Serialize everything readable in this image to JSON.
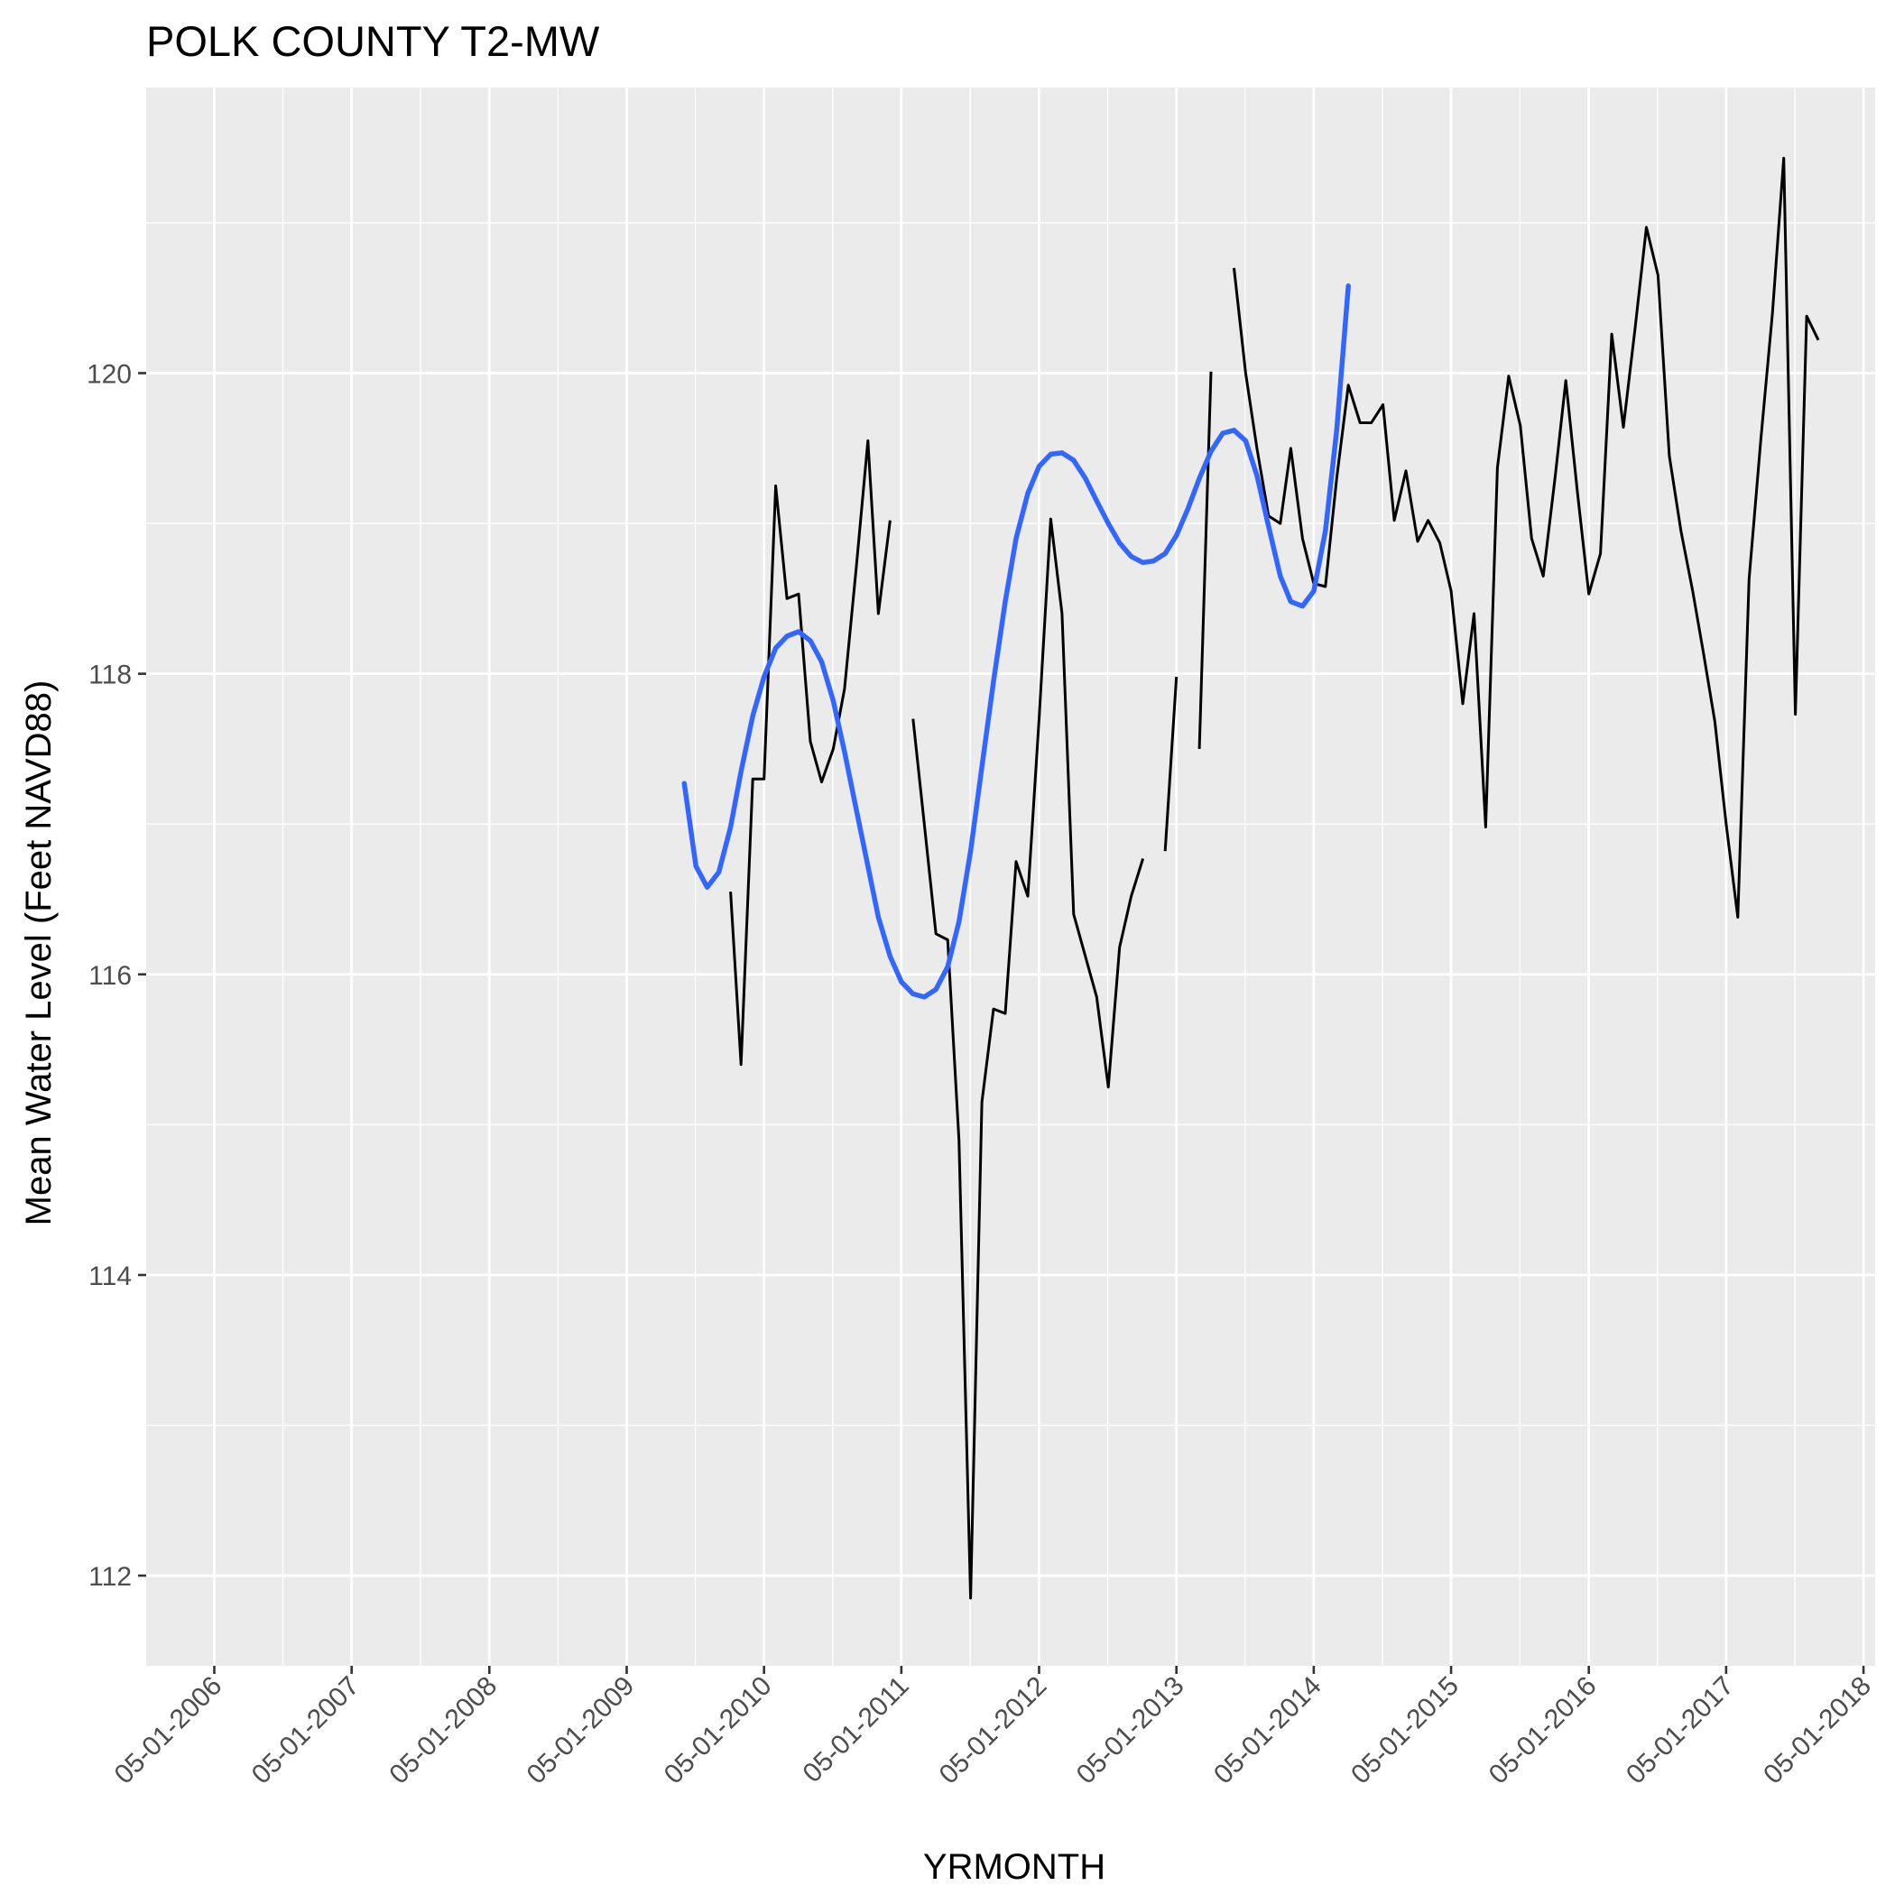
{
  "chart_data": {
    "type": "line",
    "title": "POLK COUNTY T2-MW",
    "xlabel": "YRMONTH",
    "ylabel": "Mean Water Level (Feet NAVD88)",
    "x_tick_labels": [
      "05-01-2006",
      "05-01-2007",
      "05-01-2008",
      "05-01-2009",
      "05-01-2010",
      "05-01-2011",
      "05-01-2012",
      "05-01-2013",
      "05-01-2014",
      "05-01-2015",
      "05-01-2016",
      "05-01-2017",
      "05-01-2018"
    ],
    "y_tick_labels": [
      "112",
      "114",
      "116",
      "118",
      "120"
    ],
    "xlim": [
      "2005-11-01",
      "2018-06-01"
    ],
    "ylim": [
      111.4,
      121.9
    ],
    "grid": true,
    "legend": "none",
    "colors": {
      "panel_background": "#ebebeb",
      "grid": "#ffffff",
      "observed_line": "#000000",
      "smooth_line": "#3366ff"
    },
    "series": [
      {
        "role": "observed",
        "segments": [
          [
            [
              "2010-02-01",
              116.55
            ],
            [
              "2010-03-01",
              115.4
            ],
            [
              "2010-04-01",
              117.3
            ],
            [
              "2010-05-01",
              117.3
            ],
            [
              "2010-06-01",
              119.25
            ],
            [
              "2010-07-01",
              118.5
            ],
            [
              "2010-08-01",
              118.53
            ],
            [
              "2010-09-01",
              117.55
            ],
            [
              "2010-10-01",
              117.28
            ],
            [
              "2010-11-01",
              117.5
            ],
            [
              "2010-12-01",
              117.9
            ],
            [
              "2011-01-01",
              118.7
            ],
            [
              "2011-02-01",
              119.55
            ],
            [
              "2011-03-01",
              118.4
            ],
            [
              "2011-04-01",
              119.02
            ]
          ],
          [
            [
              "2011-06-01",
              117.7
            ],
            [
              "2011-07-01",
              117.0
            ],
            [
              "2011-08-01",
              116.27
            ],
            [
              "2011-09-01",
              116.23
            ],
            [
              "2011-10-01",
              114.9
            ],
            [
              "2011-11-01",
              111.85
            ],
            [
              "2011-12-01",
              115.15
            ],
            [
              "2012-01-01",
              115.77
            ],
            [
              "2012-02-01",
              115.74
            ],
            [
              "2012-03-01",
              116.75
            ],
            [
              "2012-04-01",
              116.52
            ],
            [
              "2012-05-01",
              117.7
            ],
            [
              "2012-06-01",
              119.03
            ],
            [
              "2012-07-01",
              118.4
            ],
            [
              "2012-08-01",
              116.4
            ],
            [
              "2012-09-01",
              116.12
            ],
            [
              "2012-10-01",
              115.85
            ],
            [
              "2012-11-01",
              115.25
            ],
            [
              "2012-12-01",
              116.18
            ],
            [
              "2013-01-01",
              116.52
            ],
            [
              "2013-02-01",
              116.77
            ]
          ],
          [
            [
              "2013-04-01",
              116.82
            ],
            [
              "2013-05-01",
              117.98
            ]
          ],
          [
            [
              "2013-07-01",
              117.5
            ],
            [
              "2013-08-01",
              120.01
            ]
          ],
          [
            [
              "2013-10-01",
              120.7
            ],
            [
              "2013-11-01",
              120.0
            ],
            [
              "2013-12-01",
              119.5
            ],
            [
              "2014-01-01",
              119.05
            ],
            [
              "2014-02-01",
              119.0
            ],
            [
              "2014-03-01",
              119.5
            ],
            [
              "2014-04-01",
              118.9
            ],
            [
              "2014-05-01",
              118.6
            ],
            [
              "2014-06-01",
              118.58
            ],
            [
              "2014-07-01",
              119.3
            ],
            [
              "2014-08-01",
              119.92
            ],
            [
              "2014-09-01",
              119.67
            ],
            [
              "2014-10-01",
              119.67
            ],
            [
              "2014-11-01",
              119.79
            ],
            [
              "2014-12-01",
              119.02
            ],
            [
              "2015-01-01",
              119.35
            ],
            [
              "2015-02-01",
              118.88
            ],
            [
              "2015-03-01",
              119.02
            ],
            [
              "2015-04-01",
              118.87
            ],
            [
              "2015-05-01",
              118.55
            ],
            [
              "2015-06-01",
              117.8
            ],
            [
              "2015-07-01",
              118.4
            ],
            [
              "2015-08-01",
              116.98
            ],
            [
              "2015-09-01",
              119.37
            ],
            [
              "2015-10-01",
              119.98
            ],
            [
              "2015-11-01",
              119.65
            ],
            [
              "2015-12-01",
              118.9
            ],
            [
              "2016-01-01",
              118.65
            ],
            [
              "2016-02-01",
              119.3
            ],
            [
              "2016-03-01",
              119.95
            ],
            [
              "2016-04-01",
              119.2
            ],
            [
              "2016-05-01",
              118.53
            ],
            [
              "2016-06-01",
              118.8
            ],
            [
              "2016-07-01",
              120.26
            ],
            [
              "2016-08-01",
              119.64
            ],
            [
              "2016-09-01",
              120.3
            ],
            [
              "2016-10-01",
              120.97
            ],
            [
              "2016-11-01",
              120.65
            ],
            [
              "2016-12-01",
              119.45
            ],
            [
              "2017-01-01",
              118.95
            ],
            [
              "2017-02-01",
              118.55
            ],
            [
              "2017-03-01",
              118.15
            ],
            [
              "2017-04-01",
              117.68
            ],
            [
              "2017-05-01",
              117.0
            ],
            [
              "2017-06-01",
              116.38
            ],
            [
              "2017-07-01",
              118.63
            ],
            [
              "2017-08-01",
              119.55
            ],
            [
              "2017-09-01",
              120.4
            ],
            [
              "2017-10-01",
              121.43
            ],
            [
              "2017-11-01",
              117.73
            ],
            [
              "2017-12-01",
              120.38
            ],
            [
              "2018-01-01",
              120.22
            ]
          ]
        ]
      },
      {
        "role": "smoothed",
        "points": [
          [
            "2009-10-01",
            117.27
          ],
          [
            "2009-11-01",
            116.72
          ],
          [
            "2009-12-01",
            116.58
          ],
          [
            "2010-01-01",
            116.68
          ],
          [
            "2010-02-01",
            116.98
          ],
          [
            "2010-03-01",
            117.35
          ],
          [
            "2010-04-01",
            117.72
          ],
          [
            "2010-05-01",
            117.98
          ],
          [
            "2010-06-01",
            118.17
          ],
          [
            "2010-07-01",
            118.25
          ],
          [
            "2010-08-01",
            118.28
          ],
          [
            "2010-09-01",
            118.22
          ],
          [
            "2010-10-01",
            118.08
          ],
          [
            "2010-11-01",
            117.82
          ],
          [
            "2010-12-01",
            117.48
          ],
          [
            "2011-01-01",
            117.1
          ],
          [
            "2011-02-01",
            116.72
          ],
          [
            "2011-03-01",
            116.38
          ],
          [
            "2011-04-01",
            116.12
          ],
          [
            "2011-05-01",
            115.95
          ],
          [
            "2011-06-01",
            115.87
          ],
          [
            "2011-07-01",
            115.85
          ],
          [
            "2011-08-01",
            115.9
          ],
          [
            "2011-09-01",
            116.05
          ],
          [
            "2011-10-01",
            116.35
          ],
          [
            "2011-11-01",
            116.82
          ],
          [
            "2011-12-01",
            117.38
          ],
          [
            "2012-01-01",
            117.95
          ],
          [
            "2012-02-01",
            118.48
          ],
          [
            "2012-03-01",
            118.9
          ],
          [
            "2012-04-01",
            119.2
          ],
          [
            "2012-05-01",
            119.38
          ],
          [
            "2012-06-01",
            119.46
          ],
          [
            "2012-07-01",
            119.47
          ],
          [
            "2012-08-01",
            119.42
          ],
          [
            "2012-09-01",
            119.3
          ],
          [
            "2012-10-01",
            119.15
          ],
          [
            "2012-11-01",
            119.0
          ],
          [
            "2012-12-01",
            118.87
          ],
          [
            "2013-01-01",
            118.78
          ],
          [
            "2013-02-01",
            118.74
          ],
          [
            "2013-03-01",
            118.75
          ],
          [
            "2013-04-01",
            118.8
          ],
          [
            "2013-05-01",
            118.92
          ],
          [
            "2013-06-01",
            119.1
          ],
          [
            "2013-07-01",
            119.3
          ],
          [
            "2013-08-01",
            119.48
          ],
          [
            "2013-09-01",
            119.6
          ],
          [
            "2013-10-01",
            119.62
          ],
          [
            "2013-11-01",
            119.55
          ],
          [
            "2013-12-01",
            119.32
          ],
          [
            "2014-01-01",
            118.98
          ],
          [
            "2014-02-01",
            118.65
          ],
          [
            "2014-03-01",
            118.48
          ],
          [
            "2014-04-01",
            118.45
          ],
          [
            "2014-05-01",
            118.55
          ],
          [
            "2014-06-01",
            118.95
          ],
          [
            "2014-07-01",
            119.62
          ],
          [
            "2014-08-01",
            120.58
          ]
        ]
      }
    ]
  }
}
